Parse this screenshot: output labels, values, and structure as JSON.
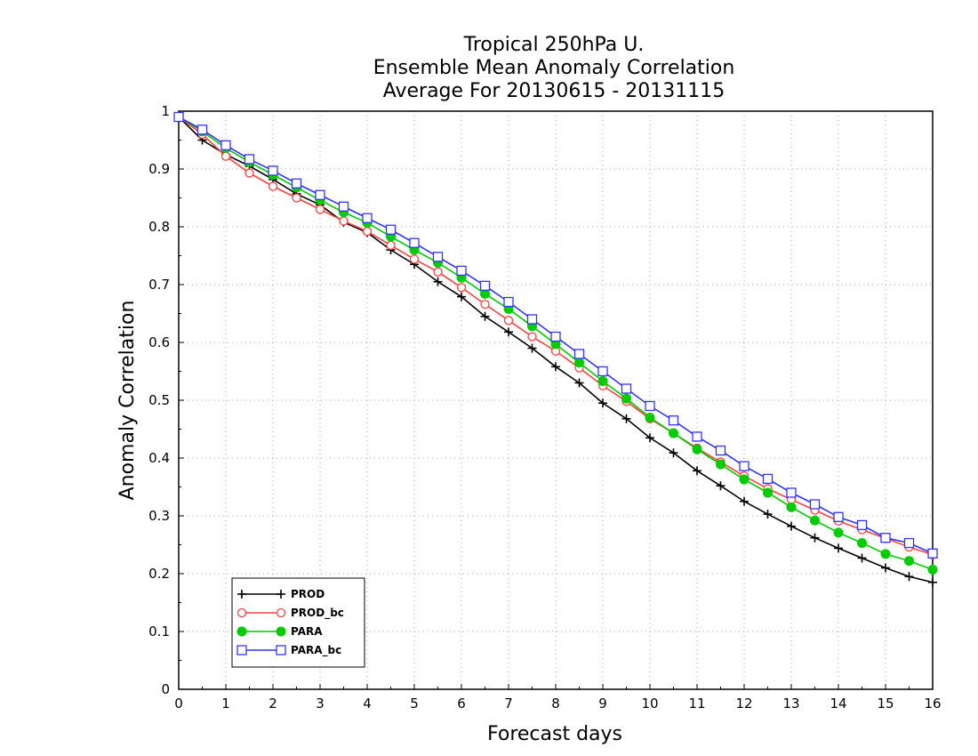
{
  "chart_data": {
    "type": "line",
    "title": [
      "Tropical 250hPa U.",
      "Ensemble Mean Anomaly Correlation",
      "Average For 20130615 - 20131115"
    ],
    "xlabel": "Forecast days",
    "ylabel": "Anomaly Correlation",
    "xlim": [
      0,
      16
    ],
    "ylim": [
      0,
      1
    ],
    "xticks": [
      0,
      1,
      2,
      3,
      4,
      5,
      6,
      7,
      8,
      9,
      10,
      11,
      12,
      13,
      14,
      15,
      16
    ],
    "xtick_labels": [
      "0",
      "1",
      "2",
      "3",
      "4",
      "5",
      "6",
      "7",
      "8",
      "9",
      "10",
      "11",
      "12",
      "13",
      "14",
      "15",
      "16"
    ],
    "yticks": [
      0,
      0.1,
      0.2,
      0.3,
      0.4,
      0.5,
      0.6,
      0.7,
      0.8,
      0.9,
      1
    ],
    "ytick_labels": [
      "0",
      "0.1",
      "0.2",
      "0.3",
      "0.4",
      "0.5",
      "0.6",
      "0.7",
      "0.8",
      "0.9",
      "1"
    ],
    "grid": true,
    "legend_position": "bottom-left",
    "x": [
      0,
      0.5,
      1,
      1.5,
      2,
      2.5,
      3,
      3.5,
      4,
      4.5,
      5,
      5.5,
      6,
      6.5,
      7,
      7.5,
      8,
      8.5,
      9,
      9.5,
      10,
      10.5,
      11,
      11.5,
      12,
      12.5,
      13,
      13.5,
      14,
      14.5,
      15,
      15.5,
      16
    ],
    "series": [
      {
        "name": "PROD",
        "color": "#000000",
        "marker": "plus",
        "values": [
          0.99,
          0.95,
          0.925,
          0.905,
          0.882,
          0.857,
          0.838,
          0.808,
          0.79,
          0.76,
          0.735,
          0.705,
          0.679,
          0.645,
          0.618,
          0.59,
          0.558,
          0.53,
          0.495,
          0.468,
          0.435,
          0.409,
          0.378,
          0.352,
          0.325,
          0.303,
          0.282,
          0.262,
          0.244,
          0.227,
          0.21,
          0.195,
          0.185
        ]
      },
      {
        "name": "PROD_bc",
        "color": "#ff4040",
        "marker": "open-circle",
        "values": [
          0.99,
          0.96,
          0.922,
          0.893,
          0.87,
          0.85,
          0.83,
          0.81,
          0.792,
          0.768,
          0.744,
          0.722,
          0.695,
          0.666,
          0.638,
          0.61,
          0.585,
          0.556,
          0.525,
          0.498,
          0.468,
          0.443,
          0.417,
          0.393,
          0.369,
          0.347,
          0.328,
          0.31,
          0.291,
          0.276,
          0.261,
          0.246,
          0.233
        ]
      },
      {
        "name": "PARA",
        "color": "#00cc00",
        "marker": "filled-circle",
        "values": [
          0.99,
          0.965,
          0.936,
          0.912,
          0.89,
          0.868,
          0.846,
          0.825,
          0.807,
          0.783,
          0.76,
          0.738,
          0.712,
          0.684,
          0.658,
          0.628,
          0.597,
          0.565,
          0.533,
          0.503,
          0.47,
          0.443,
          0.415,
          0.389,
          0.363,
          0.34,
          0.315,
          0.292,
          0.271,
          0.253,
          0.234,
          0.222,
          0.207
        ]
      },
      {
        "name": "PARA_bc",
        "color": "#3333ff",
        "marker": "open-square",
        "values": [
          0.99,
          0.968,
          0.941,
          0.917,
          0.897,
          0.875,
          0.855,
          0.835,
          0.815,
          0.795,
          0.772,
          0.748,
          0.724,
          0.698,
          0.67,
          0.64,
          0.61,
          0.58,
          0.55,
          0.52,
          0.49,
          0.465,
          0.437,
          0.413,
          0.386,
          0.364,
          0.34,
          0.32,
          0.298,
          0.284,
          0.262,
          0.253,
          0.235
        ]
      }
    ]
  }
}
